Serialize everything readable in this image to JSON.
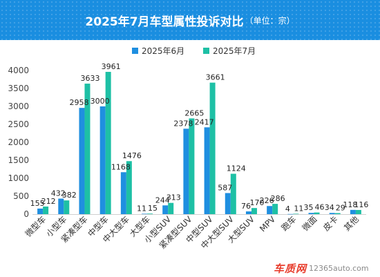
{
  "header": {
    "title": "2025年7月车型属性投诉对比",
    "unit": "（单位：宗）",
    "color": "#1a8ee0"
  },
  "chart_data": {
    "type": "bar",
    "title": "2025年7月车型属性投诉对比",
    "unit": "（单位：宗）",
    "xlabel": "",
    "ylabel": "",
    "ylim": [
      0,
      4000
    ],
    "yticks": [
      0,
      500,
      1000,
      1500,
      2000,
      2500,
      3000,
      3500,
      4000
    ],
    "grid": false,
    "legend": "top-center",
    "categories": [
      "微型车",
      "小型车",
      "紧凑型车",
      "中型车",
      "中大型车",
      "大型车",
      "小型SUV",
      "紧凑型SUV",
      "中型SUV",
      "中大型SUV",
      "大型SUV",
      "MPV",
      "跑车",
      "微面",
      "皮卡",
      "其他"
    ],
    "series": [
      {
        "name": "2025年6月",
        "color": "#1f8fe0",
        "values": [
          155,
          432,
          2958,
          3000,
          1168,
          11,
          244,
          2378,
          2417,
          587,
          76,
          226,
          4,
          35,
          34,
          118
        ]
      },
      {
        "name": "2025年7月",
        "color": "#1ec0a5",
        "values": [
          212,
          382,
          3633,
          3961,
          1476,
          15,
          313,
          2665,
          3661,
          1124,
          170,
          286,
          11,
          46,
          29,
          116
        ]
      }
    ]
  },
  "watermark": {
    "logo": "车质网",
    "site": "12365auto.com"
  }
}
